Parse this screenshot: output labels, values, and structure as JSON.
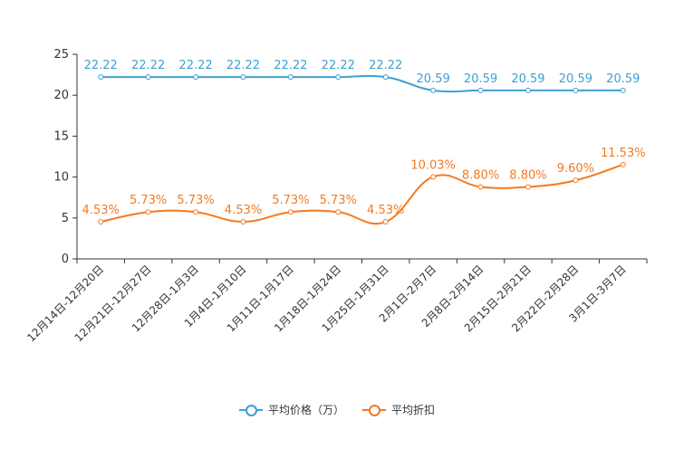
{
  "chart_data": {
    "type": "line",
    "categories": [
      "12月14日-12月20日",
      "12月21日-12月27日",
      "12月28日-1月3日",
      "1月4日-1月10日",
      "1月11日-1月17日",
      "1月18日-1月24日",
      "1月25日-1月31日",
      "2月1日-2月7日",
      "2月8日-2月14日",
      "2月15日-2月21日",
      "2月22日-2月28日",
      "3月1日-3月7日"
    ],
    "ylim": [
      0,
      25
    ],
    "yticks": [
      0,
      5,
      10,
      15,
      20,
      25
    ],
    "series": [
      {
        "name": "平均价格（万）",
        "color": "#3e9fd2",
        "values": [
          22.22,
          22.22,
          22.22,
          22.22,
          22.22,
          22.22,
          22.22,
          20.59,
          20.59,
          20.59,
          20.59,
          20.59
        ],
        "labels": [
          "22.22",
          "22.22",
          "22.22",
          "22.22",
          "22.22",
          "22.22",
          "22.22",
          "20.59",
          "20.59",
          "20.59",
          "20.59",
          "20.59"
        ]
      },
      {
        "name": "平均折扣",
        "color": "#f47920",
        "values": [
          4.53,
          5.73,
          5.73,
          4.53,
          5.73,
          5.73,
          4.53,
          10.03,
          8.8,
          8.8,
          9.6,
          11.53
        ],
        "labels": [
          "4.53%",
          "5.73%",
          "5.73%",
          "4.53%",
          "5.73%",
          "5.73%",
          "4.53%",
          "10.03%",
          "8.80%",
          "8.80%",
          "9.60%",
          "11.53%"
        ]
      }
    ],
    "legend": [
      "平均价格（万）",
      "平均折扣"
    ]
  }
}
